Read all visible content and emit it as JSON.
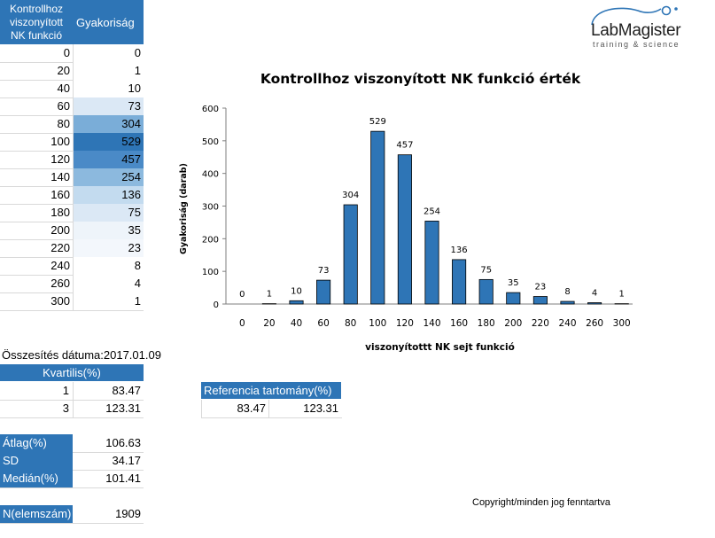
{
  "freq_table": {
    "header_col1": "Kontrollhoz viszonyított NK funkció",
    "header_col2": "Gyakoriság",
    "rows": [
      {
        "x": "0",
        "y": "0",
        "shade": "#ffffff"
      },
      {
        "x": "20",
        "y": "1",
        "shade": "#ffffff"
      },
      {
        "x": "40",
        "y": "10",
        "shade": "#ffffff"
      },
      {
        "x": "60",
        "y": "73",
        "shade": "#dbe8f5"
      },
      {
        "x": "80",
        "y": "304",
        "shade": "#7aadd8"
      },
      {
        "x": "100",
        "y": "529",
        "shade": "#2e75b6"
      },
      {
        "x": "120",
        "y": "457",
        "shade": "#4a8ac7"
      },
      {
        "x": "140",
        "y": "254",
        "shade": "#8cb9de"
      },
      {
        "x": "160",
        "y": "136",
        "shade": "#c3dbef"
      },
      {
        "x": "180",
        "y": "75",
        "shade": "#dbe8f5"
      },
      {
        "x": "200",
        "y": "35",
        "shade": "#eef4fa"
      },
      {
        "x": "220",
        "y": "23",
        "shade": "#f3f7fc"
      },
      {
        "x": "240",
        "y": "8",
        "shade": "#ffffff"
      },
      {
        "x": "260",
        "y": "4",
        "shade": "#ffffff"
      },
      {
        "x": "300",
        "y": "1",
        "shade": "#ffffff"
      }
    ]
  },
  "summary": {
    "date_label": "Összesítés dátuma:2017.01.09",
    "quartile_header": "Kvartilis(%)",
    "quartiles": [
      {
        "k": "1",
        "v": "83.47"
      },
      {
        "k": "3",
        "v": "123.31"
      }
    ],
    "mean_label": "Átlag(%)",
    "mean_value": "106.63",
    "sd_label": "SD",
    "sd_value": "34.17",
    "median_label": "Medián(%)",
    "median_value": "101.41",
    "n_label": "N(elemszám)",
    "n_value": "1909"
  },
  "reference": {
    "header": "Referencia tartomány(%)",
    "low": "83.47",
    "high": "123.31"
  },
  "logo": {
    "name": "LabMagister",
    "tagline": "training & science"
  },
  "copyright": "Copyright/minden jog fenntartva",
  "chart_data": {
    "type": "bar",
    "title": "Kontrollhoz viszonyított NK funkció érték",
    "xlabel": "viszonyítottt NK sejt funkció",
    "ylabel": "Gyakoriság (darab)",
    "categories": [
      "0",
      "20",
      "40",
      "60",
      "80",
      "100",
      "120",
      "140",
      "160",
      "180",
      "200",
      "220",
      "240",
      "260",
      "300"
    ],
    "values": [
      0,
      1,
      10,
      73,
      304,
      529,
      457,
      254,
      136,
      75,
      35,
      23,
      8,
      4,
      1
    ],
    "ylim": [
      0,
      600
    ],
    "yticks": [
      0,
      100,
      200,
      300,
      400,
      500,
      600
    ],
    "grid": false,
    "bar_color": "#2e75b6"
  }
}
